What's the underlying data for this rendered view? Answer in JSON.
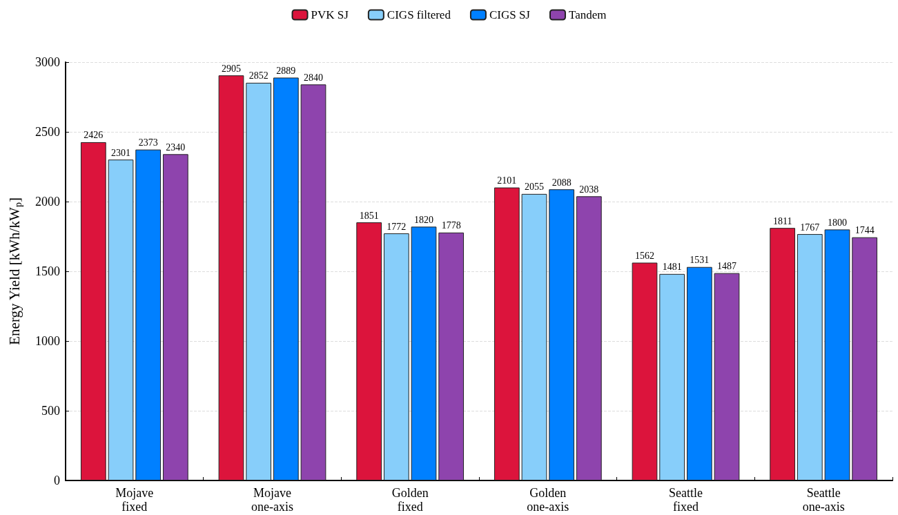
{
  "chart_data": {
    "type": "bar",
    "ylabel": "Energy Yield [kWh/kW$_{p}$]",
    "categories": [
      "Mojave\nfixed",
      "Mojave\none-axis",
      "Golden\nfixed",
      "Golden\none-axis",
      "Seattle\nfixed",
      "Seattle\none-axis"
    ],
    "series": [
      {
        "name": "PVK SJ",
        "color": "#dc143c",
        "values": [
          2426,
          2905,
          1851,
          2101,
          1562,
          1811
        ]
      },
      {
        "name": "CIGS filtered",
        "color": "#87cefa",
        "values": [
          2301,
          2852,
          1772,
          2055,
          1481,
          1767
        ]
      },
      {
        "name": "CIGS SJ",
        "color": "#0080ff",
        "values": [
          2373,
          2889,
          1820,
          2088,
          1531,
          1800
        ]
      },
      {
        "name": "Tandem",
        "color": "#8e44ad",
        "values": [
          2340,
          2840,
          1778,
          2038,
          1487,
          1744
        ]
      }
    ],
    "ylim": [
      0,
      3000
    ],
    "yticks": [
      0,
      500,
      1000,
      1500,
      2000,
      2500,
      3000
    ],
    "grid": "y",
    "legend": "top",
    "data_labels": true
  }
}
